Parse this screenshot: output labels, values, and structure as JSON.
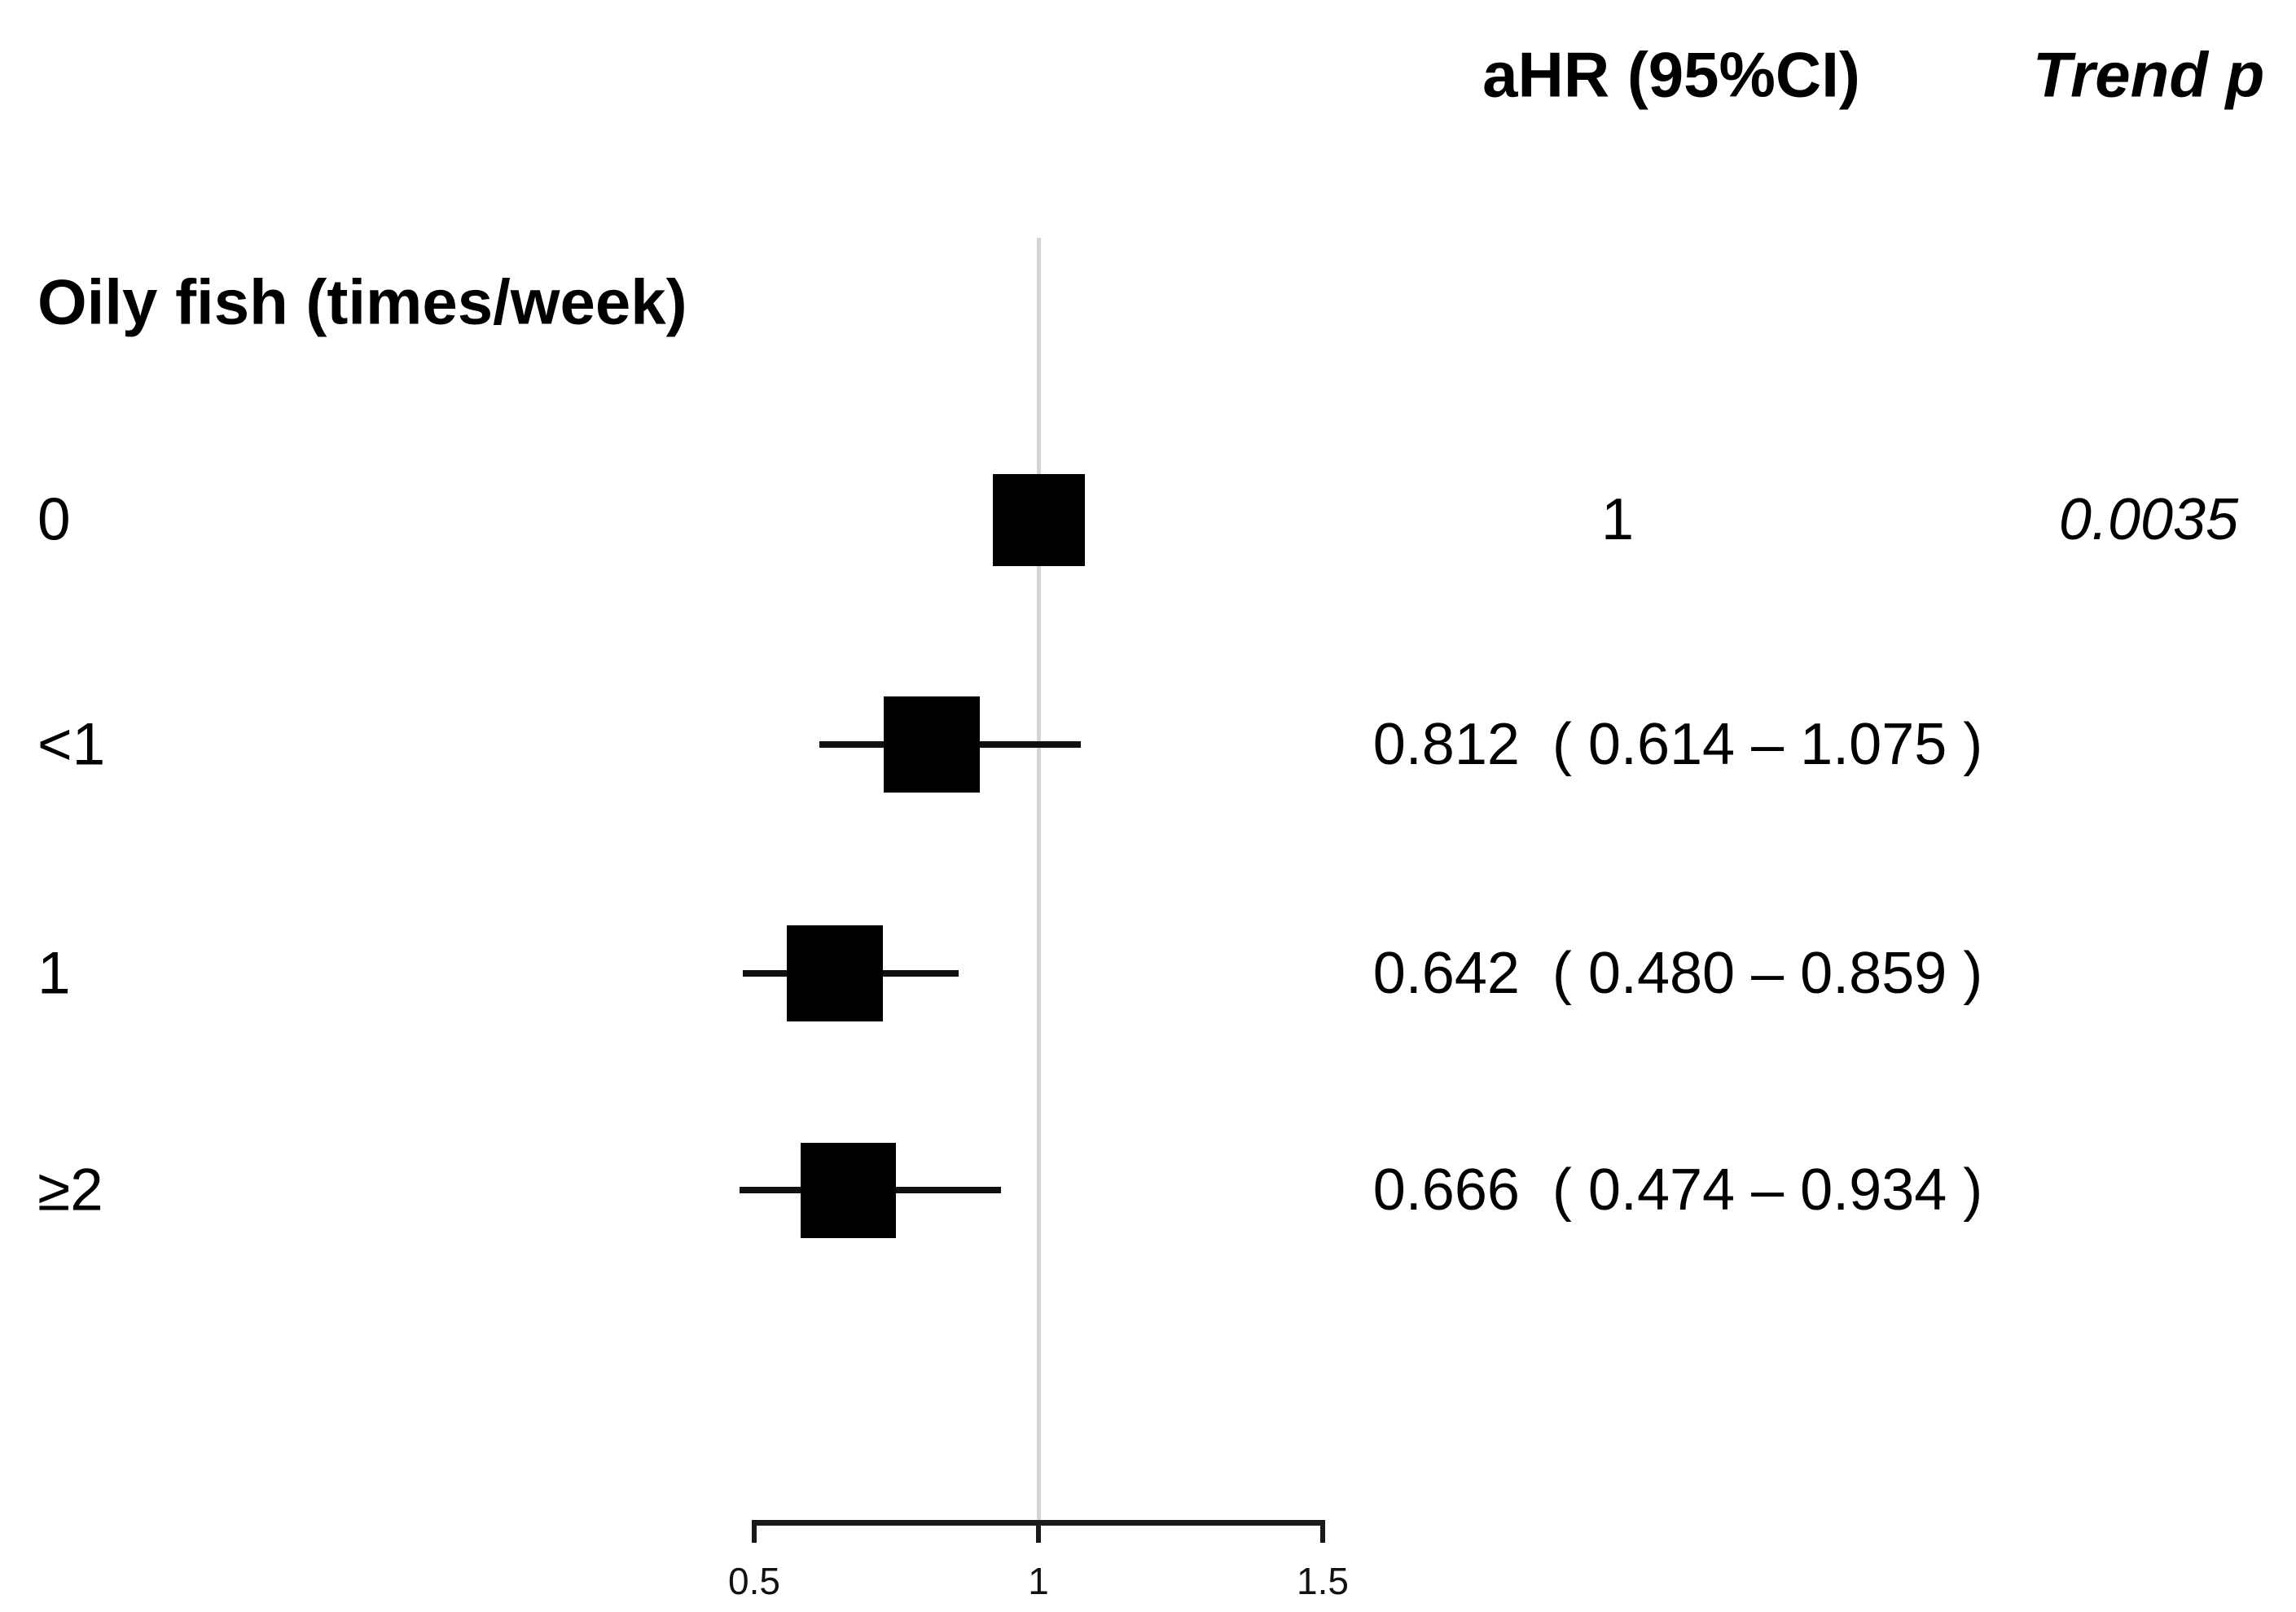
{
  "header": {
    "ahr": "aHR (95%CI)",
    "trend_p": "Trend p"
  },
  "group_label": "Oily fish (times/week)",
  "chart_data": {
    "type": "scatter",
    "subtype": "forest_plot",
    "group": "Oily fish (times/week)",
    "value_column_header": "aHR (95%CI)",
    "trend_column_header": "Trend p",
    "x_axis": {
      "scale": "linear",
      "range": [
        0.5,
        1.5
      ],
      "ticks": [
        0.5,
        1,
        1.5
      ],
      "tick_labels": [
        "0.5",
        "1",
        "1.5"
      ],
      "reference_line": 1,
      "grid": false
    },
    "rows": [
      {
        "label": "0",
        "hr": 1,
        "ci_low": null,
        "ci_high": null,
        "hr_text": "1",
        "trend_p": "0.0035"
      },
      {
        "label": "<1",
        "hr": 0.812,
        "ci_low": 0.614,
        "ci_high": 1.075,
        "hr_text": "0.812  ( 0.614 – 1.075 )"
      },
      {
        "label": "1",
        "hr": 0.642,
        "ci_low": 0.48,
        "ci_high": 0.859,
        "hr_text": "0.642  ( 0.480 – 0.859 )"
      },
      {
        "label": "≥2",
        "hr": 0.666,
        "ci_low": 0.474,
        "ci_high": 0.934,
        "hr_text": "0.666  ( 0.474 – 0.934 )"
      }
    ],
    "marker_color": "#000000",
    "reference_line_color": "#d4d4d4",
    "legend": "none"
  }
}
